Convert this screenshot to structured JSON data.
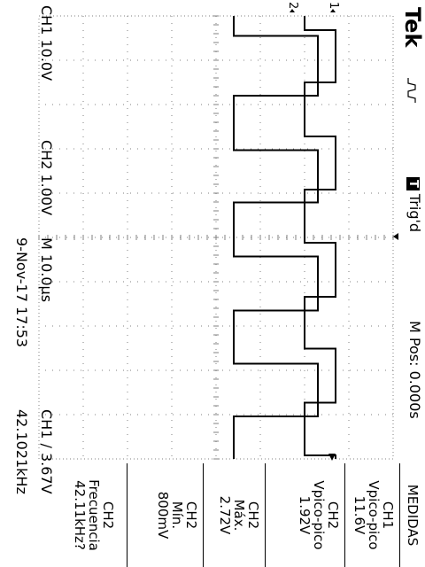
{
  "header": {
    "brand": "Tek",
    "acq_icon": "acquisition-run-icon",
    "trigger_badge": "T",
    "trigger_state": "Trig'd",
    "position": "M Pos: 0.000s"
  },
  "footer": {
    "ch1_scale": "CH1  10.0V",
    "ch2_scale": "CH2  1.00V",
    "timebase": "M 10.0µs",
    "trigger_setting": "CH1 ∕ 3.67V",
    "date_time": "9-Nov-17 17:53",
    "frequency": "42.1021kHz"
  },
  "markers": {
    "ch1": "1",
    "ch2": "2"
  },
  "measurements_menu": {
    "title": "MEDIDAS",
    "items": [
      {
        "channel": "CH1",
        "label": "Vpico-pico",
        "value": "11.6V"
      },
      {
        "channel": "CH2",
        "label": "Vpico-pico",
        "value": "1.92V"
      },
      {
        "channel": "CH2",
        "label": "Máx.",
        "value": "2.72V"
      },
      {
        "channel": "CH2",
        "label": "Mín.",
        "value": "800mV"
      },
      {
        "channel": "CH2",
        "label": "Frecuencia",
        "value": "42.11kHz?"
      }
    ]
  },
  "colors": {
    "trace": "#000000",
    "graticule": "#808080",
    "background": "#ffffff"
  },
  "chart_data": {
    "type": "line",
    "title": "",
    "xlabel": "",
    "ylabel": "",
    "grid": true,
    "x_divisions": 10,
    "y_divisions": 8,
    "series": [
      {
        "name": "CH1",
        "units": "V",
        "x_us": [
          0,
          3.2,
          3.2,
          15.0,
          15.0,
          27.2,
          27.2,
          39.2,
          39.2,
          51.2,
          51.2,
          63.4,
          63.4,
          75.1,
          75.1,
          87.3,
          87.3,
          99.2,
          99.2,
          100
        ],
        "y_div": [
          2.0,
          2.0,
          1.3,
          1.3,
          2.0,
          2.0,
          1.3,
          1.3,
          2.0,
          2.0,
          1.3,
          1.3,
          2.0,
          2.0,
          1.3,
          1.3,
          2.0,
          2.0,
          1.3,
          1.3
        ]
      },
      {
        "name": "CH2",
        "units": "V",
        "x_us": [
          0,
          4.5,
          4.5,
          18.0,
          18.0,
          30.3,
          30.3,
          42.1,
          42.1,
          54.3,
          54.3,
          66.5,
          66.5,
          78.5,
          78.5,
          90.4,
          90.4,
          100
        ],
        "y_div": [
          3.6,
          3.6,
          1.7,
          1.7,
          3.6,
          3.6,
          1.7,
          1.7,
          3.6,
          3.6,
          1.7,
          1.7,
          3.6,
          3.6,
          1.7,
          1.7,
          3.6,
          3.6
        ]
      }
    ]
  }
}
